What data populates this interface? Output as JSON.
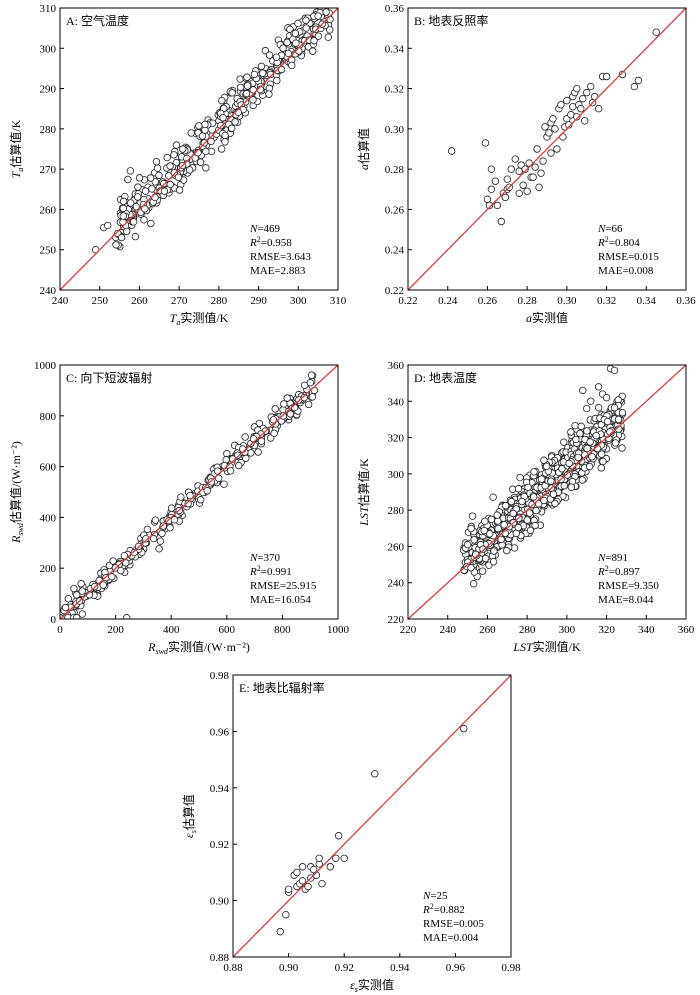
{
  "chart_data": [
    {
      "type": "scatter",
      "id": "A",
      "title": "A: 空气温度",
      "xlabel": "Ta实测值/K",
      "xlabel_parts": [
        "T",
        "a",
        "实测值/K"
      ],
      "ylabel": "Ta估算值/K",
      "ylabel_parts": [
        "T",
        "a",
        "估算值/K"
      ],
      "xlim": [
        240,
        310
      ],
      "ylim": [
        240,
        310
      ],
      "xticks": [
        240,
        250,
        260,
        270,
        280,
        290,
        300,
        310
      ],
      "yticks": [
        240,
        250,
        260,
        270,
        280,
        290,
        300,
        310
      ],
      "tick_decimals": 0,
      "line": "1:1",
      "stats": [
        {
          "label": "N",
          "value": "=469"
        },
        {
          "label": "R",
          "value": "=0.958"
        },
        {
          "label": "RMSE",
          "value": "=3.643"
        },
        {
          "label": "MAE",
          "value": "=2.883"
        }
      ],
      "cloud": {
        "n": 430,
        "xmin": 254,
        "xmax": 308,
        "spread": 3.0,
        "bias": 1.2,
        "seed": 11
      },
      "x": [
        249,
        251,
        255.5,
        252,
        256,
        305,
        306,
        307
      ],
      "y": [
        250,
        255.5,
        253,
        256,
        262,
        308,
        306,
        309
      ]
    },
    {
      "type": "scatter",
      "id": "B",
      "title": "B: 地表反照率",
      "xlabel": "a实测值",
      "xlabel_parts": [
        "a",
        "",
        "实测值"
      ],
      "ylabel": "a估算值",
      "ylabel_parts": [
        "a",
        "",
        "估算值"
      ],
      "xlim": [
        0.22,
        0.36
      ],
      "ylim": [
        0.22,
        0.36
      ],
      "xticks": [
        0.22,
        0.24,
        0.26,
        0.28,
        0.3,
        0.32,
        0.34,
        0.36
      ],
      "yticks": [
        0.22,
        0.24,
        0.26,
        0.28,
        0.3,
        0.32,
        0.34,
        0.36
      ],
      "tick_decimals": 2,
      "line": "1:1",
      "stats": [
        {
          "label": "N",
          "value": "=66"
        },
        {
          "label": "R",
          "value": "=0.804"
        },
        {
          "label": "RMSE",
          "value": "=0.015"
        },
        {
          "label": "MAE",
          "value": "=0.008"
        }
      ],
      "x": [
        0.242,
        0.259,
        0.26,
        0.261,
        0.262,
        0.262,
        0.264,
        0.265,
        0.267,
        0.268,
        0.269,
        0.27,
        0.27,
        0.271,
        0.272,
        0.274,
        0.276,
        0.276,
        0.277,
        0.278,
        0.279,
        0.28,
        0.281,
        0.282,
        0.283,
        0.284,
        0.285,
        0.286,
        0.287,
        0.288,
        0.289,
        0.29,
        0.291,
        0.292,
        0.292,
        0.293,
        0.294,
        0.295,
        0.296,
        0.297,
        0.298,
        0.299,
        0.3,
        0.3,
        0.301,
        0.302,
        0.303,
        0.303,
        0.304,
        0.305,
        0.305,
        0.306,
        0.307,
        0.308,
        0.309,
        0.31,
        0.312,
        0.313,
        0.314,
        0.316,
        0.318,
        0.32,
        0.328,
        0.334,
        0.336,
        0.345
      ],
      "y": [
        0.289,
        0.293,
        0.265,
        0.262,
        0.27,
        0.28,
        0.274,
        0.262,
        0.254,
        0.268,
        0.266,
        0.27,
        0.275,
        0.271,
        0.28,
        0.285,
        0.279,
        0.268,
        0.282,
        0.272,
        0.28,
        0.269,
        0.283,
        0.276,
        0.276,
        0.281,
        0.29,
        0.271,
        0.278,
        0.284,
        0.301,
        0.296,
        0.298,
        0.303,
        0.288,
        0.305,
        0.3,
        0.29,
        0.31,
        0.312,
        0.296,
        0.301,
        0.314,
        0.305,
        0.302,
        0.307,
        0.316,
        0.311,
        0.318,
        0.32,
        0.306,
        0.312,
        0.31,
        0.315,
        0.304,
        0.318,
        0.321,
        0.313,
        0.316,
        0.31,
        0.326,
        0.326,
        0.327,
        0.321,
        0.324,
        0.348
      ]
    },
    {
      "type": "scatter",
      "id": "C",
      "title": "C: 向下短波辐射",
      "xlabel": "Rswd实测值/(W·m-2)",
      "xlabel_parts": [
        "R",
        "swd",
        "实测值/(W·m⁻²)"
      ],
      "ylabel": "Rswd估算值/(W·m-2)",
      "ylabel_parts": [
        "R",
        "swd",
        "估算值/(W·m⁻²)"
      ],
      "xlim": [
        0,
        1000
      ],
      "ylim": [
        0,
        1000
      ],
      "xticks": [
        0,
        200,
        400,
        600,
        800,
        1000
      ],
      "yticks": [
        0,
        200,
        400,
        600,
        800,
        1000
      ],
      "tick_decimals": 0,
      "line": "1:1",
      "stats": [
        {
          "label": "N",
          "value": "=370"
        },
        {
          "label": "R",
          "value": "=0.991"
        },
        {
          "label": "RMSE",
          "value": "=25.915"
        },
        {
          "label": "MAE",
          "value": "=16.054"
        }
      ],
      "cloud": {
        "n": 340,
        "xmin": 5,
        "xmax": 910,
        "spread": 22,
        "bias": 0,
        "seed": 23
      },
      "x": [
        240,
        50,
        60,
        80,
        30,
        20,
        880,
        905,
        915,
        60
      ],
      "y": [
        5,
        120,
        95,
        110,
        80,
        45,
        920,
        960,
        900,
        5
      ]
    },
    {
      "type": "scatter",
      "id": "D",
      "title": "D: 地表温度",
      "xlabel": "LST实测值/K",
      "xlabel_parts": [
        "LST",
        "",
        "实测值/K"
      ],
      "ylabel": "LST估算值/K",
      "ylabel_parts": [
        "LST",
        "",
        "估算值/K"
      ],
      "xlim": [
        220,
        360
      ],
      "ylim": [
        220,
        360
      ],
      "xticks": [
        220,
        240,
        260,
        280,
        300,
        320,
        340,
        360
      ],
      "yticks": [
        220,
        240,
        260,
        280,
        300,
        320,
        340,
        360
      ],
      "tick_decimals": 0,
      "line": "1:1",
      "stats": [
        {
          "label": "N",
          "value": "=891"
        },
        {
          "label": "R",
          "value": "=0.897"
        },
        {
          "label": "RMSE",
          "value": "=9.350"
        },
        {
          "label": "MAE",
          "value": "=8.044"
        }
      ],
      "cloud": {
        "n": 860,
        "xmin": 248,
        "xmax": 328,
        "spread": 7.0,
        "bias": 3.0,
        "seed": 37
      },
      "x": [
        248,
        249,
        250,
        316,
        318,
        320,
        322,
        324,
        326,
        308,
        310,
        312
      ],
      "y": [
        258,
        259,
        261,
        348,
        344,
        342,
        358,
        357,
        330,
        346,
        336,
        340
      ]
    },
    {
      "type": "scatter",
      "id": "E",
      "title": "E: 地表比辐射率",
      "xlabel": "εs实测值",
      "xlabel_parts": [
        "ε",
        "s",
        "实测值"
      ],
      "ylabel": "εs估算值",
      "ylabel_parts": [
        "ε",
        "s",
        "估算值"
      ],
      "xlim": [
        0.88,
        0.98
      ],
      "ylim": [
        0.88,
        0.98
      ],
      "xticks": [
        0.88,
        0.9,
        0.92,
        0.94,
        0.96,
        0.98
      ],
      "yticks": [
        0.88,
        0.9,
        0.92,
        0.94,
        0.96,
        0.98
      ],
      "tick_decimals": 2,
      "line": "1:1",
      "stats": [
        {
          "label": "N",
          "value": "=25"
        },
        {
          "label": "R",
          "value": "=0.882"
        },
        {
          "label": "RMSE",
          "value": "=0.005"
        },
        {
          "label": "MAE",
          "value": "=0.004"
        }
      ],
      "x": [
        0.897,
        0.899,
        0.9,
        0.9,
        0.902,
        0.903,
        0.903,
        0.904,
        0.905,
        0.905,
        0.906,
        0.907,
        0.908,
        0.908,
        0.909,
        0.91,
        0.911,
        0.911,
        0.912,
        0.915,
        0.917,
        0.918,
        0.92,
        0.931,
        0.963
      ],
      "y": [
        0.889,
        0.895,
        0.903,
        0.904,
        0.909,
        0.905,
        0.91,
        0.906,
        0.907,
        0.912,
        0.904,
        0.905,
        0.912,
        0.908,
        0.911,
        0.909,
        0.913,
        0.915,
        0.906,
        0.912,
        0.915,
        0.923,
        0.915,
        0.945,
        0.961
      ]
    }
  ],
  "colors": {
    "fit_line": "#d9403b",
    "marker_edge": "#222222",
    "axis": "#000000"
  }
}
